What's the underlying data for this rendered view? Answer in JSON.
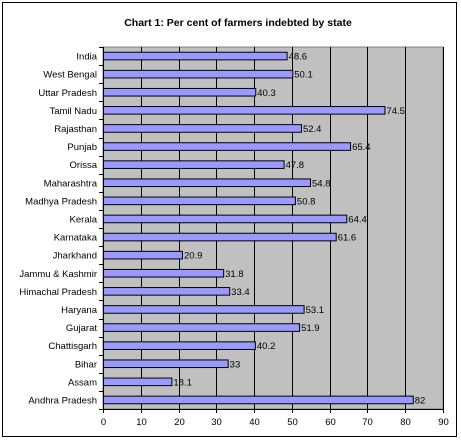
{
  "chart_data": {
    "type": "bar",
    "orientation": "horizontal",
    "title": "Chart 1:  Per cent of farmers indebted by state",
    "xlabel": "",
    "ylabel": "",
    "categories": [
      "India",
      "West Bengal",
      "Uttar Pradesh",
      "Tamil Nadu",
      "Rajasthan",
      "Punjab",
      "Orissa",
      "Maharashtra",
      "Madhya Pradesh",
      "Kerala",
      "Karnataka",
      "Jharkhand",
      "Jammu & Kashmir",
      "Himachal Pradesh",
      "Haryana",
      "Gujarat",
      "Chattisgarh",
      "Bihar",
      "Assam",
      "Andhra Pradesh"
    ],
    "values": [
      48.6,
      50.1,
      40.3,
      74.5,
      52.4,
      65.4,
      47.8,
      54.8,
      50.8,
      64.4,
      61.6,
      20.9,
      31.8,
      33.4,
      53.1,
      51.9,
      40.2,
      33,
      18.1,
      82
    ],
    "value_labels": [
      "48.6",
      "50.1",
      "40.3",
      "74.5",
      "52.4",
      "65.4",
      "47.8",
      "54.8",
      "50.8",
      "64.4",
      "61.6",
      "20.9",
      "31.8",
      "33.4",
      "53.1",
      "51.9",
      "40.2",
      "33",
      "18.1",
      "82"
    ],
    "xlim": [
      0,
      90
    ],
    "xticks": [
      0,
      10,
      20,
      30,
      40,
      50,
      60,
      70,
      80,
      90
    ],
    "grid": "vertical",
    "legend": "none",
    "colors": {
      "bar_fill": "#9999ff",
      "bar_stroke": "#000000",
      "plot_background": "#c0c0c0",
      "gridline": "#000000"
    }
  }
}
